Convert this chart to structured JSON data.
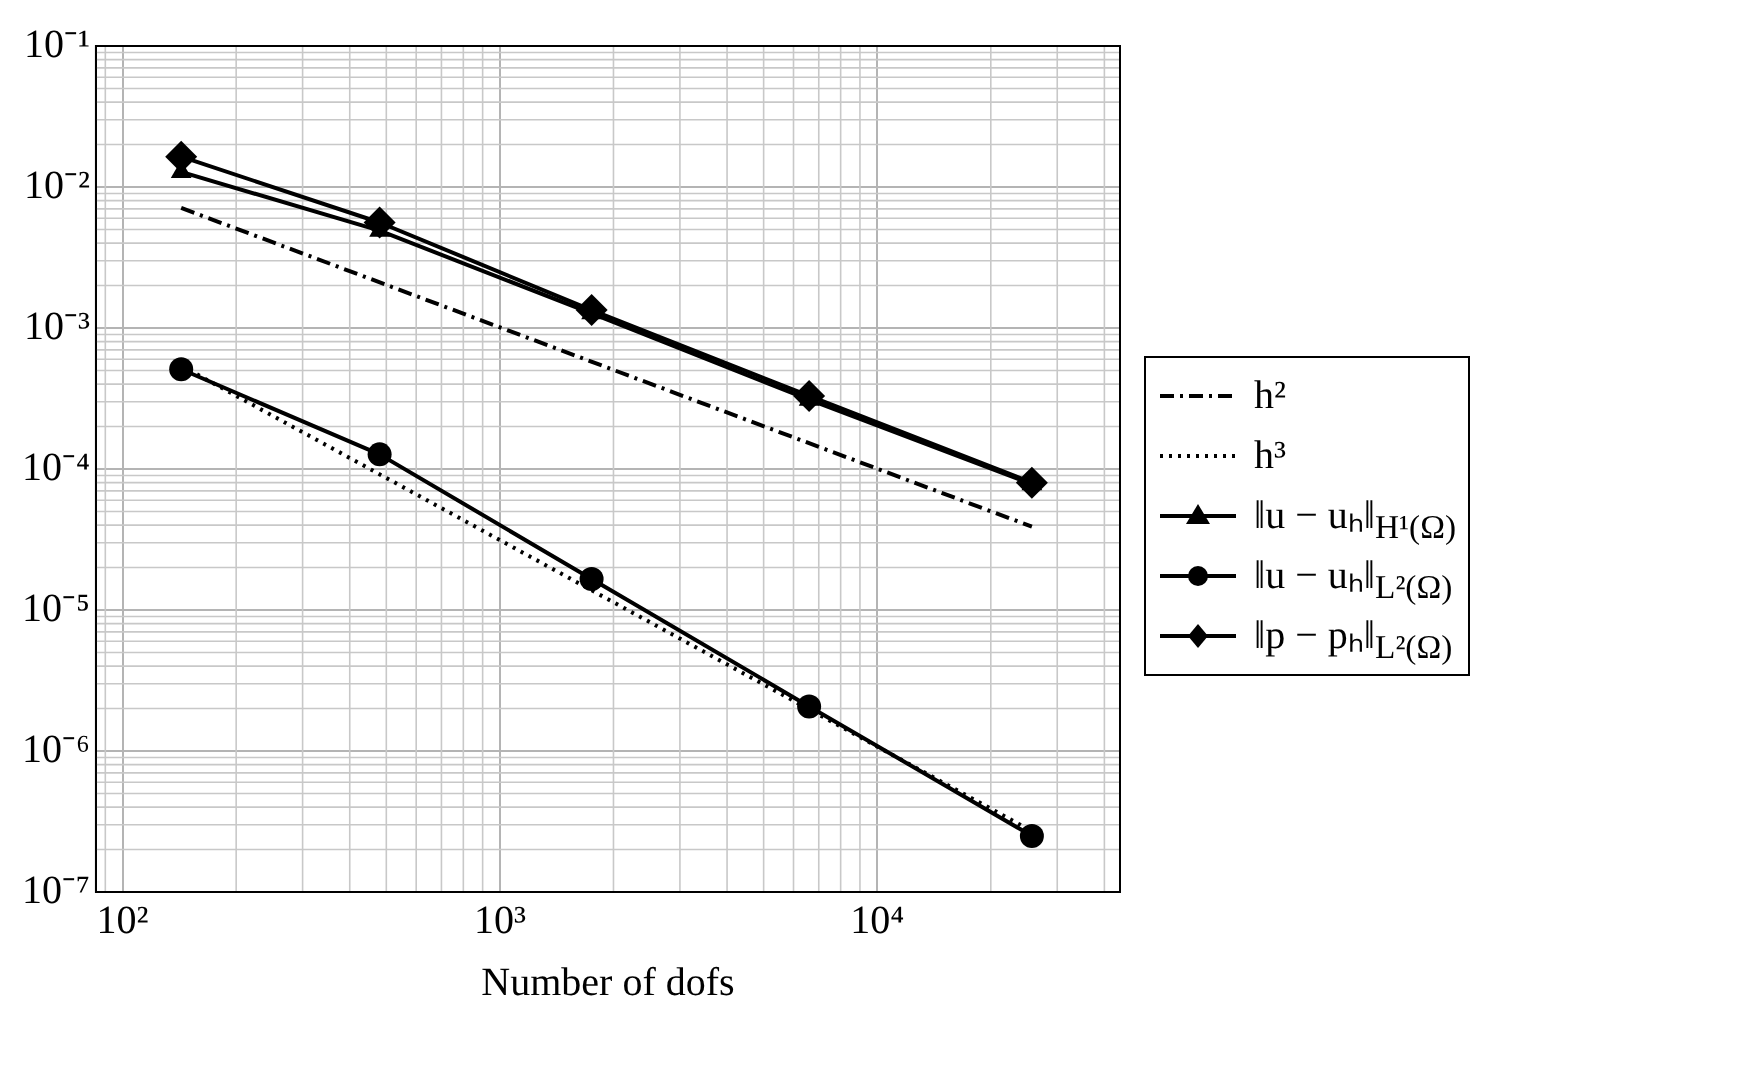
{
  "chart_data": {
    "type": "line",
    "xlabel": "Number of dofs",
    "log": "xy",
    "grid": true,
    "legend": "right",
    "xlim": [
      85,
      44000
    ],
    "ylim": [
      1e-07,
      0.1
    ],
    "xticks": [
      {
        "value": 100,
        "label": "10²"
      },
      {
        "value": 1000,
        "label": "10³"
      },
      {
        "value": 10000,
        "label": "10⁴"
      }
    ],
    "yticks": [
      {
        "value": 1e-07,
        "label": "10⁻⁷"
      },
      {
        "value": 1e-06,
        "label": "10⁻⁶"
      },
      {
        "value": 1e-05,
        "label": "10⁻⁵"
      },
      {
        "value": 0.0001,
        "label": "10⁻⁴"
      },
      {
        "value": 0.001,
        "label": "10⁻³"
      },
      {
        "value": 0.01,
        "label": "10⁻²"
      },
      {
        "value": 0.1,
        "label": "10⁻¹"
      }
    ],
    "series": [
      {
        "name": "h²",
        "color": "#000000",
        "line_style": "dashed",
        "marker": "none",
        "x": [
          143,
          25700
        ],
        "values": [
          0.0071,
          3.9e-05
        ]
      },
      {
        "name": "h³",
        "color": "#000000",
        "line_style": "dotted",
        "marker": "none",
        "x": [
          143,
          25700
        ],
        "values": [
          0.00054,
          2.7e-07
        ]
      },
      {
        "name": "‖u − uₕ‖$_{H¹(Ω)}$",
        "color": "#000000",
        "line_style": "solid",
        "marker": "triangle",
        "x": [
          143,
          480,
          1750,
          6600,
          25700
        ],
        "values": [
          0.0128,
          0.0049,
          0.00127,
          0.00031,
          7.8e-05
        ]
      },
      {
        "name": "‖u − uₕ‖$_{L²(Ω)}$",
        "color": "#000000",
        "line_style": "solid",
        "marker": "circle",
        "x": [
          143,
          480,
          1750,
          6600,
          25700
        ],
        "values": [
          0.00051,
          0.000127,
          1.66e-05,
          2.07e-06,
          2.5e-07
        ]
      },
      {
        "name": "‖p − pₕ‖$_{L²(Ω)}$",
        "color": "#000000",
        "line_style": "solid",
        "marker": "diamond",
        "x": [
          143,
          480,
          1750,
          6600,
          25700
        ],
        "values": [
          0.0164,
          0.0056,
          0.00134,
          0.00033,
          8e-05
        ]
      }
    ]
  }
}
